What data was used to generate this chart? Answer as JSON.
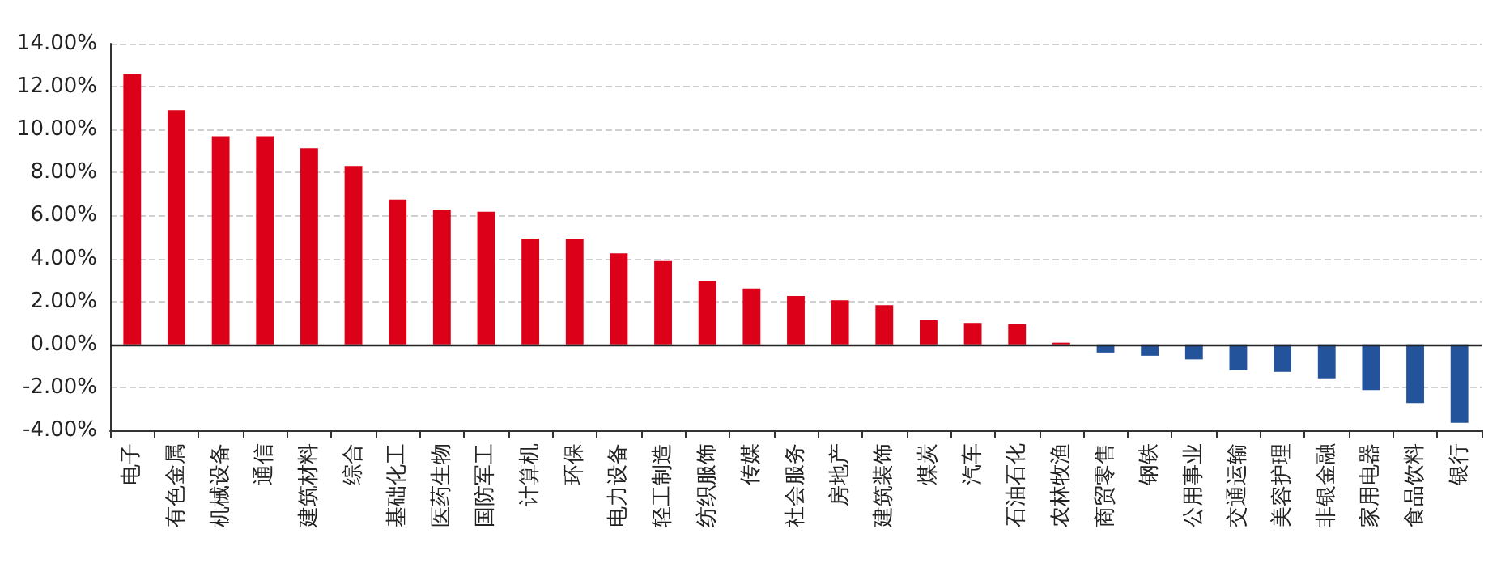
{
  "chart_data": {
    "type": "bar",
    "categories": [
      "电子",
      "有色金属",
      "机械设备",
      "通信",
      "建筑材料",
      "综合",
      "基础化工",
      "医药生物",
      "国防军工",
      "计算机",
      "环保",
      "电力设备",
      "轻工制造",
      "纺织服饰",
      "传媒",
      "社会服务",
      "房地产",
      "建筑装饰",
      "煤炭",
      "汽车",
      "石油石化",
      "农林牧渔",
      "商贸零售",
      "钢铁",
      "公用事业",
      "交通运输",
      "美容护理",
      "非银金融",
      "家用电器",
      "食品饮料",
      "银行"
    ],
    "values": [
      12.59,
      10.9,
      9.69,
      9.69,
      9.13,
      8.3,
      6.74,
      6.28,
      6.18,
      4.92,
      4.92,
      4.24,
      3.88,
      2.95,
      2.6,
      2.25,
      2.05,
      1.83,
      1.13,
      1.0,
      0.95,
      0.08,
      -0.38,
      -0.53,
      -0.7,
      -1.2,
      -1.28,
      -1.58,
      -2.13,
      -2.73,
      -3.65
    ],
    "colors": [
      "#dc0018",
      "#dc0018",
      "#dc0018",
      "#dc0018",
      "#dc0018",
      "#dc0018",
      "#dc0018",
      "#dc0018",
      "#dc0018",
      "#dc0018",
      "#dc0018",
      "#dc0018",
      "#dc0018",
      "#dc0018",
      "#dc0018",
      "#dc0018",
      "#dc0018",
      "#dc0018",
      "#dc0018",
      "#dc0018",
      "#dc0018",
      "#dc0018",
      "#23539a",
      "#23539a",
      "#23539a",
      "#23539a",
      "#23539a",
      "#23539a",
      "#23539a",
      "#23539a",
      "#23539a"
    ],
    "ylim": [
      -4,
      14
    ],
    "yticks": [
      {
        "value": -4,
        "label": "-4.00%"
      },
      {
        "value": -2,
        "label": "-2.00%"
      },
      {
        "value": 0,
        "label": "0.00%"
      },
      {
        "value": 2,
        "label": "2.00%"
      },
      {
        "value": 4,
        "label": "4.00%"
      },
      {
        "value": 6,
        "label": "6.00%"
      },
      {
        "value": 8,
        "label": "8.00%"
      },
      {
        "value": 10,
        "label": "10.00%"
      },
      {
        "value": 12,
        "label": "12.00%"
      },
      {
        "value": 14,
        "label": "14.00%"
      }
    ],
    "grid": "y"
  }
}
